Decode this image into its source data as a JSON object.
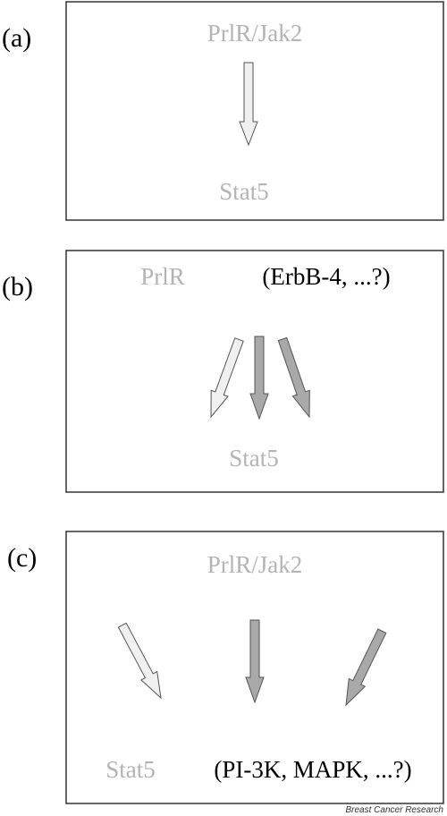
{
  "panels": [
    {
      "label": "(a)",
      "source": "PrlR/Jak2",
      "target": "Stat5"
    },
    {
      "label": "(b)",
      "source": "PrlR",
      "other": "(ErbB-4, ...?)",
      "target": "Stat5"
    },
    {
      "label": "(c)",
      "source": "PrlR/Jak2",
      "target": "Stat5",
      "other": "(PI-3K, MAPK, ...?)"
    }
  ],
  "colors": {
    "gray_text": "#b4b4b4",
    "black_text": "#000000",
    "light_arrow": "#f0f0f0",
    "dark_arrow": "#a9a9a9",
    "border": "#333333"
  },
  "credit": "Breast Cancer Research"
}
